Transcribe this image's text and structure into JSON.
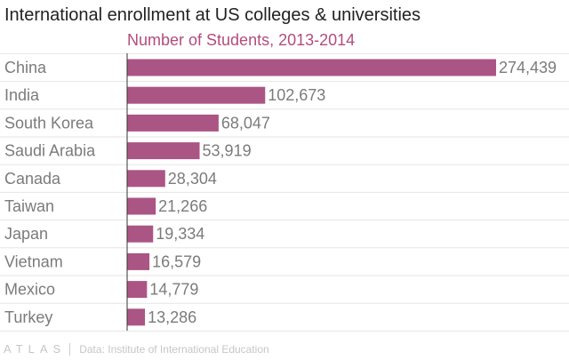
{
  "header": {
    "title": "International enrollment at US colleges & universities"
  },
  "footer": {
    "brand": "ATLAS",
    "source": "Data: Institute of International Education"
  },
  "colors": {
    "bar": "#ab5585",
    "subtitle": "#b24c7e",
    "grid": "#e6e6e6",
    "axis": "#333333"
  },
  "chart_data": {
    "type": "bar",
    "orientation": "horizontal",
    "title": "International enrollment at US colleges & universities",
    "subtitle": "Number of Students, 2013-2014",
    "categories": [
      "China",
      "India",
      "South Korea",
      "Saudi Arabia",
      "Canada",
      "Taiwan",
      "Japan",
      "Vietnam",
      "Mexico",
      "Turkey"
    ],
    "values": [
      274439,
      102673,
      68047,
      53919,
      28304,
      21266,
      19334,
      16579,
      14779,
      13286
    ],
    "value_labels": [
      "274,439",
      "102,673",
      "68,047",
      "53,919",
      "28,304",
      "21,266",
      "19,334",
      "16,579",
      "14,779",
      "13,286"
    ],
    "xlim": [
      0,
      274439
    ],
    "grid": true,
    "legend": "none"
  }
}
